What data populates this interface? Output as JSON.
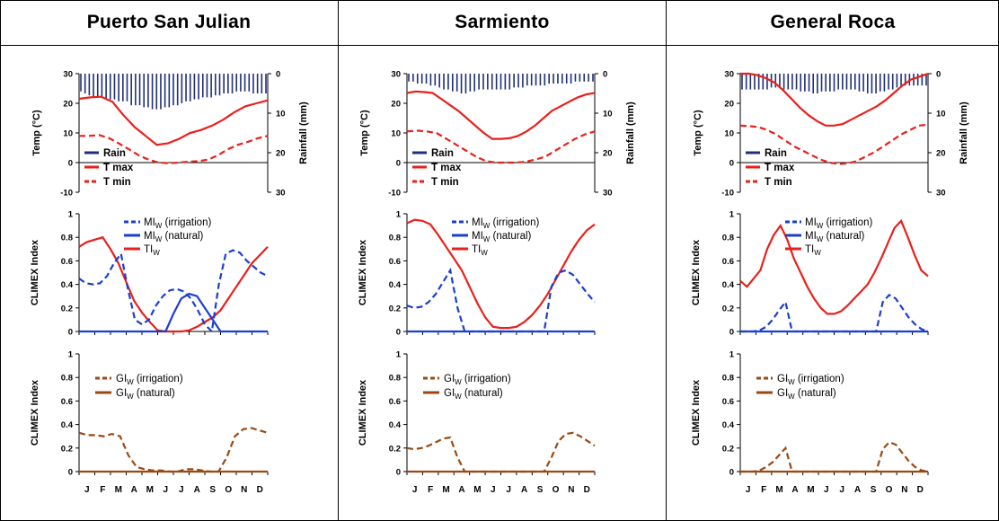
{
  "headers": [
    "Puerto San Julian",
    "Sarmiento",
    "General Roca"
  ],
  "months": [
    "J",
    "F",
    "M",
    "A",
    "M",
    "J",
    "J",
    "A",
    "S",
    "O",
    "N",
    "D"
  ],
  "colors": {
    "red": "#e8201c",
    "blue": "#1a3fd0",
    "navy": "#1f2f78",
    "brown": "#994a12",
    "axis": "#000000"
  },
  "chart_data": [
    {
      "location": "Puerto San Julian",
      "climate": {
        "type": "line",
        "ylabel": "Temp (°C)",
        "ylabel2": "Rainfall (mm)",
        "ylim": [
          -10,
          30
        ],
        "y2lim": [
          0,
          30
        ],
        "yticks": [
          "30",
          "20",
          "10",
          "0",
          "-10"
        ],
        "y2ticks": [
          "0",
          "10",
          "20",
          "30"
        ],
        "legend": [
          "Rain",
          "T max",
          "T min"
        ],
        "series": [
          {
            "name": "T max",
            "style": "solid",
            "values": [
              21.5,
              22,
              22.2,
              20.5,
              16,
              12,
              9,
              6,
              6.5,
              8,
              10,
              11,
              12.5,
              14.5,
              17,
              19,
              20,
              21
            ]
          },
          {
            "name": "T min",
            "style": "dashed",
            "values": [
              9,
              9,
              9.3,
              8.3,
              6.5,
              4.5,
              2.5,
              1,
              0,
              -0.2,
              0,
              0.3,
              0.5,
              1,
              2.5,
              4.5,
              6,
              7,
              8.2,
              9
            ]
          },
          {
            "name": "Rain",
            "style": "bars",
            "values": [
              4.5,
              5,
              5.5,
              6,
              6,
              6,
              6.5,
              6.5,
              6.5,
              7,
              7,
              7,
              8,
              8,
              8,
              8.5,
              8.5,
              9,
              9,
              9,
              8.5,
              8.5,
              8,
              8,
              7.5,
              7,
              7,
              6.5,
              6.5,
              6,
              6,
              6,
              5.5,
              5.5,
              5,
              5,
              5,
              4.5,
              4.5,
              4.5,
              4.5,
              5,
              5,
              5,
              5
            ]
          }
        ]
      },
      "mi": {
        "type": "line",
        "ylabel": "CLIMEX Index",
        "ylim": [
          0,
          1
        ],
        "yticks": [
          "1",
          "0.8",
          "0.6",
          "0.4",
          "0.2",
          "0"
        ],
        "legend": [
          "MI_W (irrigation)",
          "MI_W (natural)",
          "TI_W"
        ],
        "series": [
          {
            "name": "TI_W",
            "style": "solid",
            "values": [
              0.72,
              0.76,
              0.78,
              0.8,
              0.7,
              0.58,
              0.42,
              0.26,
              0.16,
              0.08,
              0.01,
              0,
              0,
              0,
              0.01,
              0.04,
              0.08,
              0.12,
              0.18,
              0.28,
              0.38,
              0.48,
              0.58,
              0.65,
              0.72
            ]
          },
          {
            "name": "MI_W (irrigation)",
            "style": "dashed",
            "values": [
              0.45,
              0.41,
              0.4,
              0.41,
              0.47,
              0.58,
              0.66,
              0.36,
              0.1,
              0.06,
              0.1,
              0.22,
              0.3,
              0.35,
              0.36,
              0.34,
              0.28,
              0.18,
              0.06,
              0,
              0.4,
              0.66,
              0.69,
              0.67,
              0.6,
              0.55,
              0.5,
              0.47
            ]
          },
          {
            "name": "MI_W (natural)",
            "style": "solid",
            "values": [
              0,
              0,
              0,
              0,
              0,
              0,
              0,
              0,
              0,
              0,
              0,
              0,
              0.15,
              0.28,
              0.32,
              0.3,
              0.2,
              0.1,
              0,
              0,
              0,
              0,
              0,
              0,
              0
            ]
          }
        ]
      },
      "gi": {
        "type": "line",
        "ylabel": "CLIMEX Index",
        "ylim": [
          0,
          1
        ],
        "yticks": [
          "1",
          "0.8",
          "0.6",
          "0.4",
          "0.2",
          "0"
        ],
        "legend": [
          "GI_W (irrigation)",
          "GI_W (natural)"
        ],
        "series": [
          {
            "name": "GI_W (irrigation)",
            "style": "dashed",
            "values": [
              0.33,
              0.31,
              0.31,
              0.3,
              0.32,
              0.3,
              0.14,
              0.04,
              0.02,
              0.01,
              0.01,
              0,
              0,
              0.02,
              0.02,
              0.01,
              0,
              0,
              0.12,
              0.3,
              0.36,
              0.37,
              0.35,
              0.33
            ]
          },
          {
            "name": "GI_W (natural)",
            "style": "solid",
            "values": [
              0,
              0,
              0,
              0,
              0,
              0,
              0,
              0,
              0,
              0,
              0,
              0
            ]
          }
        ]
      }
    },
    {
      "location": "Sarmiento",
      "climate": {
        "type": "line",
        "ylabel": "Temp (°C)",
        "ylabel2": "Rainfall (mm)",
        "ylim": [
          -10,
          30
        ],
        "y2lim": [
          0,
          30
        ],
        "yticks": [
          "30",
          "20",
          "10",
          "0",
          "-10"
        ],
        "y2ticks": [
          "0",
          "10",
          "20",
          "30"
        ],
        "legend": [
          "Rain",
          "T max",
          "T min"
        ],
        "series": [
          {
            "name": "T max",
            "style": "solid",
            "values": [
              23.5,
              24,
              23.8,
              23.5,
              21.5,
              19.5,
              17.5,
              15,
              12.5,
              10,
              8,
              8,
              8.2,
              9,
              10.5,
              12.5,
              15,
              17.5,
              19,
              20.5,
              22,
              23,
              23.5
            ]
          },
          {
            "name": "T min",
            "style": "dashed",
            "values": [
              10.5,
              10.8,
              10.5,
              10,
              8,
              6,
              4,
              2,
              0.5,
              0,
              0,
              0,
              0.3,
              1,
              2,
              4,
              6,
              8,
              9.5,
              10.5
            ]
          },
          {
            "name": "Rain",
            "style": "bars",
            "values": [
              2,
              2,
              2.5,
              2.5,
              2.5,
              3,
              3,
              3.5,
              4,
              4,
              4.5,
              4.5,
              5,
              5,
              4.5,
              4.5,
              4,
              4,
              4,
              4,
              4,
              4,
              4,
              4,
              3.5,
              3.5,
              3.5,
              3,
              3,
              3,
              3,
              3,
              2.5,
              2.5,
              2.5,
              2.5,
              2.5,
              2.5,
              2,
              2,
              2,
              2,
              2
            ]
          }
        ]
      },
      "mi": {
        "type": "line",
        "ylabel": "CLIMEX Index",
        "ylim": [
          0,
          1
        ],
        "yticks": [
          "1",
          "0.8",
          "0.6",
          "0.4",
          "0.2",
          "0"
        ],
        "legend": [
          "MI_W (irrigation)",
          "MI_W (natural)",
          "TI_W"
        ],
        "series": [
          {
            "name": "TI_W",
            "style": "solid",
            "values": [
              0.92,
              0.95,
              0.94,
              0.91,
              0.82,
              0.72,
              0.62,
              0.52,
              0.38,
              0.24,
              0.12,
              0.04,
              0.03,
              0.03,
              0.04,
              0.08,
              0.14,
              0.22,
              0.32,
              0.44,
              0.56,
              0.68,
              0.78,
              0.86,
              0.91
            ]
          },
          {
            "name": "MI_W (irrigation)",
            "style": "dashed",
            "values": [
              0.22,
              0.2,
              0.21,
              0.25,
              0.32,
              0.42,
              0.52,
              0.2,
              0,
              0,
              0,
              0,
              0,
              0,
              0,
              0,
              0,
              0,
              0,
              0,
              0.38,
              0.5,
              0.52,
              0.48,
              0.4,
              0.32,
              0.25
            ]
          },
          {
            "name": "MI_W (natural)",
            "style": "solid",
            "values": [
              0,
              0,
              0,
              0,
              0,
              0,
              0,
              0,
              0,
              0,
              0,
              0
            ]
          }
        ]
      },
      "gi": {
        "type": "line",
        "ylabel": "CLIMEX Index",
        "ylim": [
          0,
          1
        ],
        "yticks": [
          "1",
          "0.8",
          "0.6",
          "0.4",
          "0.2",
          "0"
        ],
        "legend": [
          "GI_W (irrigation)",
          "GI_W (natural)"
        ],
        "series": [
          {
            "name": "GI_W (irrigation)",
            "style": "dashed",
            "values": [
              0.2,
              0.19,
              0.2,
              0.22,
              0.25,
              0.28,
              0.29,
              0.12,
              0,
              0,
              0,
              0,
              0,
              0,
              0,
              0,
              0,
              0,
              0,
              0,
              0.12,
              0.26,
              0.32,
              0.33,
              0.3,
              0.26,
              0.22
            ]
          },
          {
            "name": "GI_W (natural)",
            "style": "solid",
            "values": [
              0,
              0,
              0,
              0,
              0,
              0,
              0,
              0,
              0,
              0,
              0,
              0
            ]
          }
        ]
      }
    },
    {
      "location": "General Roca",
      "climate": {
        "type": "line",
        "ylabel": "Temp (°C)",
        "ylabel2": "Rainfall (mm)",
        "ylim": [
          -10,
          30
        ],
        "y2lim": [
          0,
          30
        ],
        "yticks": [
          "30",
          "20",
          "10",
          "0",
          "-10"
        ],
        "y2ticks": [
          "0",
          "10",
          "20",
          "30"
        ],
        "legend": [
          "Rain",
          "T max",
          "T min"
        ],
        "series": [
          {
            "name": "T max",
            "style": "solid",
            "values": [
              30,
              30,
              29.5,
              28.5,
              27,
              24.5,
              21.5,
              18.5,
              16,
              14,
              12.5,
              12.5,
              13,
              14.5,
              16,
              17.5,
              19,
              21,
              23.5,
              26,
              28,
              29,
              30
            ]
          },
          {
            "name": "T min",
            "style": "dashed",
            "values": [
              12.5,
              12.3,
              12,
              11,
              9.5,
              7.5,
              5.5,
              4,
              2.5,
              1,
              0,
              -0.5,
              -0.3,
              0.5,
              2,
              3.5,
              5.5,
              7.5,
              9.5,
              11,
              12.5,
              12.8
            ]
          },
          {
            "name": "Rain",
            "style": "bars",
            "values": [
              4,
              4,
              4,
              4,
              4,
              4,
              4,
              3.5,
              3.5,
              3.5,
              4,
              4,
              4,
              4,
              4.5,
              4.5,
              4.5,
              5,
              5,
              4.5,
              4.5,
              4.5,
              4.5,
              4,
              4,
              4,
              4,
              4,
              4.5,
              4.5,
              5,
              5,
              5,
              4.5,
              4.5,
              4,
              4,
              3.5,
              3.5,
              3,
              3,
              3,
              3,
              3,
              3
            ]
          }
        ]
      },
      "mi": {
        "type": "line",
        "ylabel": "CLIMEX Index",
        "ylim": [
          0,
          1
        ],
        "yticks": [
          "1",
          "0.8",
          "0.6",
          "0.4",
          "0.2",
          "0"
        ],
        "legend": [
          "MI_W (irrigation)",
          "MI_W (natural)",
          "TI_W"
        ],
        "series": [
          {
            "name": "TI_W",
            "style": "solid",
            "values": [
              0.43,
              0.38,
              0.45,
              0.52,
              0.7,
              0.82,
              0.9,
              0.78,
              0.62,
              0.5,
              0.38,
              0.28,
              0.2,
              0.15,
              0.15,
              0.17,
              0.22,
              0.28,
              0.34,
              0.4,
              0.5,
              0.62,
              0.75,
              0.88,
              0.94,
              0.8,
              0.65,
              0.52,
              0.47
            ]
          },
          {
            "name": "MI_W (irrigation)",
            "style": "dashed",
            "values": [
              0,
              0,
              0,
              0.01,
              0.04,
              0.1,
              0.18,
              0.25,
              0,
              0,
              0,
              0,
              0,
              0,
              0,
              0,
              0,
              0,
              0,
              0,
              0,
              0,
              0.25,
              0.31,
              0.28,
              0.2,
              0.12,
              0.06,
              0.02,
              0
            ]
          },
          {
            "name": "MI_W (natural)",
            "style": "solid",
            "values": [
              0,
              0,
              0,
              0,
              0,
              0,
              0,
              0,
              0,
              0,
              0,
              0
            ]
          }
        ]
      },
      "gi": {
        "type": "line",
        "ylabel": "CLIMEX Index",
        "ylim": [
          0,
          1
        ],
        "yticks": [
          "1",
          "0.8",
          "0.6",
          "0.4",
          "0.2",
          "0"
        ],
        "legend": [
          "GI_W (irrigation)",
          "GI_W (natural)"
        ],
        "series": [
          {
            "name": "GI_W (irrigation)",
            "style": "dashed",
            "values": [
              0,
              0,
              0,
              0.01,
              0.04,
              0.08,
              0.14,
              0.2,
              0,
              0,
              0,
              0,
              0,
              0,
              0,
              0,
              0,
              0,
              0,
              0,
              0,
              0,
              0.19,
              0.25,
              0.23,
              0.16,
              0.09,
              0.04,
              0.01,
              0
            ]
          },
          {
            "name": "GI_W (natural)",
            "style": "solid",
            "values": [
              0,
              0,
              0,
              0,
              0,
              0,
              0,
              0,
              0,
              0,
              0,
              0
            ]
          }
        ]
      }
    }
  ]
}
